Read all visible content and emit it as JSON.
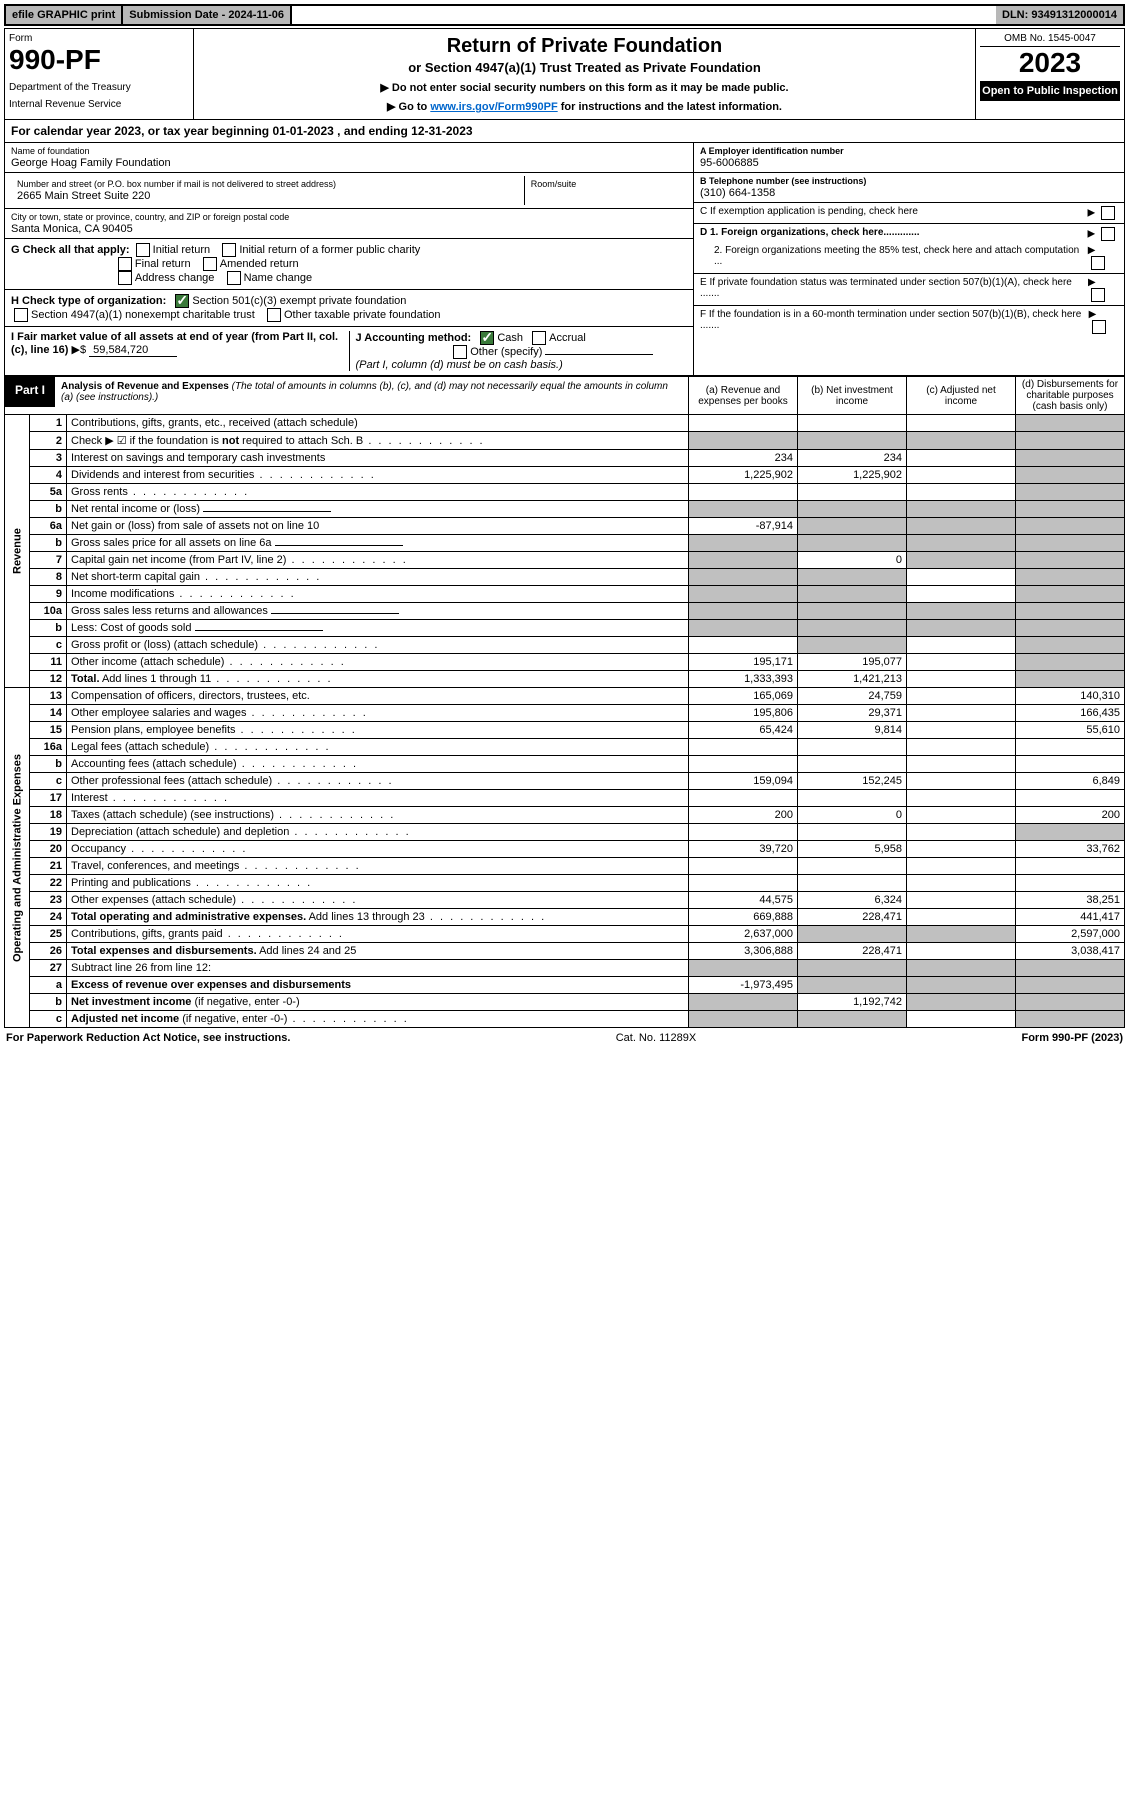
{
  "top": {
    "efile": "efile GRAPHIC print",
    "sub_date_label": "Submission Date - 2024-11-06",
    "dln": "DLN: 93491312000014"
  },
  "header": {
    "form_label": "Form",
    "form_no": "990-PF",
    "dept1": "Department of the Treasury",
    "dept2": "Internal Revenue Service",
    "title": "Return of Private Foundation",
    "subtitle": "or Section 4947(a)(1) Trust Treated as Private Foundation",
    "note1": "▶ Do not enter social security numbers on this form as it may be made public.",
    "note2_pre": "▶ Go to ",
    "note2_link": "www.irs.gov/Form990PF",
    "note2_post": " for instructions and the latest information.",
    "omb": "OMB No. 1545-0047",
    "year": "2023",
    "open": "Open to Public Inspection"
  },
  "cal_year": "For calendar year 2023, or tax year beginning 01-01-2023          , and ending 12-31-2023",
  "info": {
    "name_label": "Name of foundation",
    "name": "George Hoag Family Foundation",
    "addr_label": "Number and street (or P.O. box number if mail is not delivered to street address)",
    "addr": "2665 Main Street Suite 220",
    "room_label": "Room/suite",
    "city_label": "City or town, state or province, country, and ZIP or foreign postal code",
    "city": "Santa Monica, CA  90405",
    "ein_label": "A Employer identification number",
    "ein": "95-6006885",
    "tel_label": "B Telephone number (see instructions)",
    "tel": "(310) 664-1358",
    "c_label": "C If exemption application is pending, check here",
    "d1": "D 1. Foreign organizations, check here.............",
    "d2": "2. Foreign organizations meeting the 85% test, check here and attach computation ...",
    "e": "E  If private foundation status was terminated under section 507(b)(1)(A), check here .......",
    "f": "F  If the foundation is in a 60-month termination under section 507(b)(1)(B), check here .......",
    "g_label": "G Check all that apply:",
    "g_opts": [
      "Initial return",
      "Initial return of a former public charity",
      "Final return",
      "Amended return",
      "Address change",
      "Name change"
    ],
    "h_label": "H Check type of organization:",
    "h1": "Section 501(c)(3) exempt private foundation",
    "h2": "Section 4947(a)(1) nonexempt charitable trust",
    "h3": "Other taxable private foundation",
    "i_label": "I Fair market value of all assets at end of year (from Part II, col. (c), line 16)",
    "i_value": "59,584,720",
    "j_label": "J Accounting method:",
    "j_cash": "Cash",
    "j_accrual": "Accrual",
    "j_other": "Other (specify)",
    "j_note": "(Part I, column (d) must be on cash basis.)"
  },
  "part1": {
    "label": "Part I",
    "title": "Analysis of Revenue and Expenses",
    "note": "(The total of amounts in columns (b), (c), and (d) may not necessarily equal the amounts in column (a) (see instructions).)",
    "cols": {
      "a": "(a) Revenue and expenses per books",
      "b": "(b) Net investment income",
      "c": "(c) Adjusted net income",
      "d": "(d) Disbursements for charitable purposes (cash basis only)"
    }
  },
  "sections": {
    "revenue": "Revenue",
    "expenses": "Operating and Administrative Expenses"
  },
  "rows": [
    {
      "n": "1",
      "d": "Contributions, gifts, grants, etc., received (attach schedule)",
      "a": "",
      "b": "",
      "c": "",
      "dd": "",
      "shade_d": true
    },
    {
      "n": "2",
      "d": "Check ▶ ☑ if the foundation is <b>not</b> required to attach Sch. B",
      "a": "",
      "b": "",
      "c": "",
      "dd": "",
      "shade_a": true,
      "shade_b": true,
      "shade_c": true,
      "shade_d": true,
      "dots": true
    },
    {
      "n": "3",
      "d": "Interest on savings and temporary cash investments",
      "a": "234",
      "b": "234",
      "c": "",
      "dd": "",
      "shade_d": true
    },
    {
      "n": "4",
      "d": "Dividends and interest from securities",
      "a": "1,225,902",
      "b": "1,225,902",
      "c": "",
      "dd": "",
      "shade_d": true,
      "dots": true
    },
    {
      "n": "5a",
      "d": "Gross rents",
      "a": "",
      "b": "",
      "c": "",
      "dd": "",
      "shade_d": true,
      "dots": true
    },
    {
      "n": "b",
      "d": "Net rental income or (loss)",
      "a": "",
      "b": "",
      "c": "",
      "dd": "",
      "shade_a": true,
      "shade_b": true,
      "shade_c": true,
      "shade_d": true,
      "inline_field": true
    },
    {
      "n": "6a",
      "d": "Net gain or (loss) from sale of assets not on line 10",
      "a": "-87,914",
      "b": "",
      "c": "",
      "dd": "",
      "shade_b": true,
      "shade_c": true,
      "shade_d": true
    },
    {
      "n": "b",
      "d": "Gross sales price for all assets on line 6a",
      "a": "",
      "b": "",
      "c": "",
      "dd": "",
      "shade_a": true,
      "shade_b": true,
      "shade_c": true,
      "shade_d": true,
      "inline_field": true
    },
    {
      "n": "7",
      "d": "Capital gain net income (from Part IV, line 2)",
      "a": "",
      "b": "0",
      "c": "",
      "dd": "",
      "shade_a": true,
      "shade_c": true,
      "shade_d": true,
      "dots": true
    },
    {
      "n": "8",
      "d": "Net short-term capital gain",
      "a": "",
      "b": "",
      "c": "",
      "dd": "",
      "shade_a": true,
      "shade_b": true,
      "shade_d": true,
      "dots": true
    },
    {
      "n": "9",
      "d": "Income modifications",
      "a": "",
      "b": "",
      "c": "",
      "dd": "",
      "shade_a": true,
      "shade_b": true,
      "shade_d": true,
      "dots": true
    },
    {
      "n": "10a",
      "d": "Gross sales less returns and allowances",
      "a": "",
      "b": "",
      "c": "",
      "dd": "",
      "shade_a": true,
      "shade_b": true,
      "shade_c": true,
      "shade_d": true,
      "inline_field": true
    },
    {
      "n": "b",
      "d": "Less: Cost of goods sold",
      "a": "",
      "b": "",
      "c": "",
      "dd": "",
      "shade_a": true,
      "shade_b": true,
      "shade_c": true,
      "shade_d": true,
      "dots": true,
      "inline_field": true
    },
    {
      "n": "c",
      "d": "Gross profit or (loss) (attach schedule)",
      "a": "",
      "b": "",
      "c": "",
      "dd": "",
      "shade_b": true,
      "shade_d": true,
      "dots": true
    },
    {
      "n": "11",
      "d": "Other income (attach schedule)",
      "a": "195,171",
      "b": "195,077",
      "c": "",
      "dd": "",
      "shade_d": true,
      "dots": true
    },
    {
      "n": "12",
      "d": "<b>Total.</b> Add lines 1 through 11",
      "a": "1,333,393",
      "b": "1,421,213",
      "c": "",
      "dd": "",
      "shade_d": true,
      "dots": true,
      "bold": true
    }
  ],
  "exp_rows": [
    {
      "n": "13",
      "d": "Compensation of officers, directors, trustees, etc.",
      "a": "165,069",
      "b": "24,759",
      "c": "",
      "dd": "140,310"
    },
    {
      "n": "14",
      "d": "Other employee salaries and wages",
      "a": "195,806",
      "b": "29,371",
      "c": "",
      "dd": "166,435",
      "dots": true
    },
    {
      "n": "15",
      "d": "Pension plans, employee benefits",
      "a": "65,424",
      "b": "9,814",
      "c": "",
      "dd": "55,610",
      "dots": true
    },
    {
      "n": "16a",
      "d": "Legal fees (attach schedule)",
      "a": "",
      "b": "",
      "c": "",
      "dd": "",
      "dots": true
    },
    {
      "n": "b",
      "d": "Accounting fees (attach schedule)",
      "a": "",
      "b": "",
      "c": "",
      "dd": "",
      "dots": true
    },
    {
      "n": "c",
      "d": "Other professional fees (attach schedule)",
      "a": "159,094",
      "b": "152,245",
      "c": "",
      "dd": "6,849",
      "dots": true
    },
    {
      "n": "17",
      "d": "Interest",
      "a": "",
      "b": "",
      "c": "",
      "dd": "",
      "dots": true
    },
    {
      "n": "18",
      "d": "Taxes (attach schedule) (see instructions)",
      "a": "200",
      "b": "0",
      "c": "",
      "dd": "200",
      "dots": true
    },
    {
      "n": "19",
      "d": "Depreciation (attach schedule) and depletion",
      "a": "",
      "b": "",
      "c": "",
      "dd": "",
      "shade_d": true,
      "dots": true
    },
    {
      "n": "20",
      "d": "Occupancy",
      "a": "39,720",
      "b": "5,958",
      "c": "",
      "dd": "33,762",
      "dots": true
    },
    {
      "n": "21",
      "d": "Travel, conferences, and meetings",
      "a": "",
      "b": "",
      "c": "",
      "dd": "",
      "dots": true
    },
    {
      "n": "22",
      "d": "Printing and publications",
      "a": "",
      "b": "",
      "c": "",
      "dd": "",
      "dots": true
    },
    {
      "n": "23",
      "d": "Other expenses (attach schedule)",
      "a": "44,575",
      "b": "6,324",
      "c": "",
      "dd": "38,251",
      "dots": true
    },
    {
      "n": "24",
      "d": "<b>Total operating and administrative expenses.</b> Add lines 13 through 23",
      "a": "669,888",
      "b": "228,471",
      "c": "",
      "dd": "441,417",
      "dots": true
    },
    {
      "n": "25",
      "d": "Contributions, gifts, grants paid",
      "a": "2,637,000",
      "b": "",
      "c": "",
      "dd": "2,597,000",
      "shade_b": true,
      "shade_c": true,
      "dots": true
    },
    {
      "n": "26",
      "d": "<b>Total expenses and disbursements.</b> Add lines 24 and 25",
      "a": "3,306,888",
      "b": "228,471",
      "c": "",
      "dd": "3,038,417"
    },
    {
      "n": "27",
      "d": "Subtract line 26 from line 12:",
      "a": "",
      "b": "",
      "c": "",
      "dd": "",
      "shade_a": true,
      "shade_b": true,
      "shade_c": true,
      "shade_d": true
    },
    {
      "n": "a",
      "d": "<b>Excess of revenue over expenses and disbursements</b>",
      "a": "-1,973,495",
      "b": "",
      "c": "",
      "dd": "",
      "shade_b": true,
      "shade_c": true,
      "shade_d": true
    },
    {
      "n": "b",
      "d": "<b>Net investment income</b> (if negative, enter -0-)",
      "a": "",
      "b": "1,192,742",
      "c": "",
      "dd": "",
      "shade_a": true,
      "shade_c": true,
      "shade_d": true
    },
    {
      "n": "c",
      "d": "<b>Adjusted net income</b> (if negative, enter -0-)",
      "a": "",
      "b": "",
      "c": "",
      "dd": "",
      "shade_a": true,
      "shade_b": true,
      "shade_d": true,
      "dots": true
    }
  ],
  "footer": {
    "left": "For Paperwork Reduction Act Notice, see instructions.",
    "mid": "Cat. No. 11289X",
    "right": "Form 990-PF (2023)"
  }
}
